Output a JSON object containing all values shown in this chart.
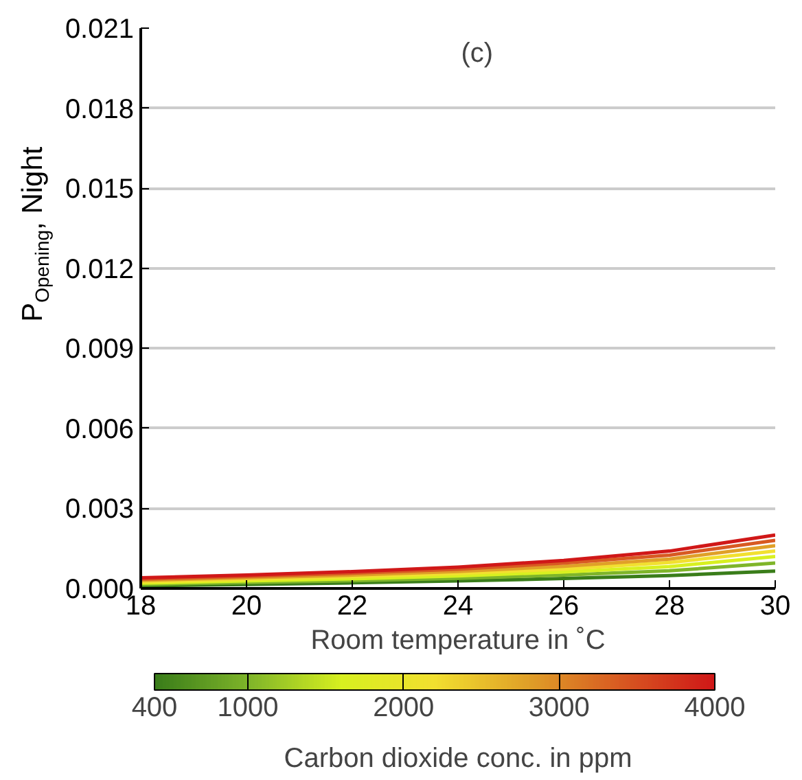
{
  "chart_data": {
    "type": "line",
    "xlabel": "Room temperature in ˚C",
    "ylabel": "P$_{Opening}$, Night",
    "clabel": "Carbon dioxide conc. in ppm",
    "annotations": [
      "(c)"
    ],
    "x": [
      18,
      20,
      22,
      24,
      26,
      28,
      30
    ],
    "series": [
      {
        "color": "#3a7d1a",
        "values": [
          0.0001,
          0.00015,
          0.00021,
          0.00028,
          0.00037,
          0.00048,
          0.00065
        ]
      },
      {
        "color": "#7fb52a",
        "values": [
          0.00015,
          0.00022,
          0.00029,
          0.00038,
          0.0005,
          0.00066,
          0.00095
        ]
      },
      {
        "color": "#d8f020",
        "values": [
          0.0002,
          0.00028,
          0.00036,
          0.00047,
          0.00062,
          0.00082,
          0.0012
        ]
      },
      {
        "color": "#f2e030",
        "values": [
          0.00025,
          0.00034,
          0.00044,
          0.00056,
          0.00073,
          0.00097,
          0.0014
        ]
      },
      {
        "color": "#e0a028",
        "values": [
          0.0003,
          0.0004,
          0.0005,
          0.00064,
          0.00083,
          0.0011,
          0.0016
        ]
      },
      {
        "color": "#d85a22",
        "values": [
          0.00035,
          0.00045,
          0.00057,
          0.00072,
          0.00095,
          0.00125,
          0.0018
        ]
      },
      {
        "color": "#d01818",
        "values": [
          0.0004,
          0.0005,
          0.00063,
          0.0008,
          0.00105,
          0.0014,
          0.002
        ]
      }
    ],
    "xlim": [
      18,
      30
    ],
    "xticks": [
      18,
      20,
      22,
      24,
      26,
      28,
      30
    ],
    "ylim": [
      0,
      0.021
    ],
    "yticks": [
      {
        "value": 0,
        "label": "0.000"
      },
      {
        "value": 0.003,
        "label": "0.003"
      },
      {
        "value": 0.006,
        "label": "0.006"
      },
      {
        "value": 0.009,
        "label": "0.009"
      },
      {
        "value": 0.012,
        "label": "0.012"
      },
      {
        "value": 0.015,
        "label": "0.015"
      },
      {
        "value": 0.018,
        "label": "0.018"
      },
      {
        "value": 0.021,
        "label": "0.021"
      }
    ],
    "clim": [
      400,
      4000
    ],
    "cticks": [
      400,
      1000,
      2000,
      3000,
      4000
    ],
    "grid": "y",
    "marker": "none",
    "line_style": "solid"
  }
}
